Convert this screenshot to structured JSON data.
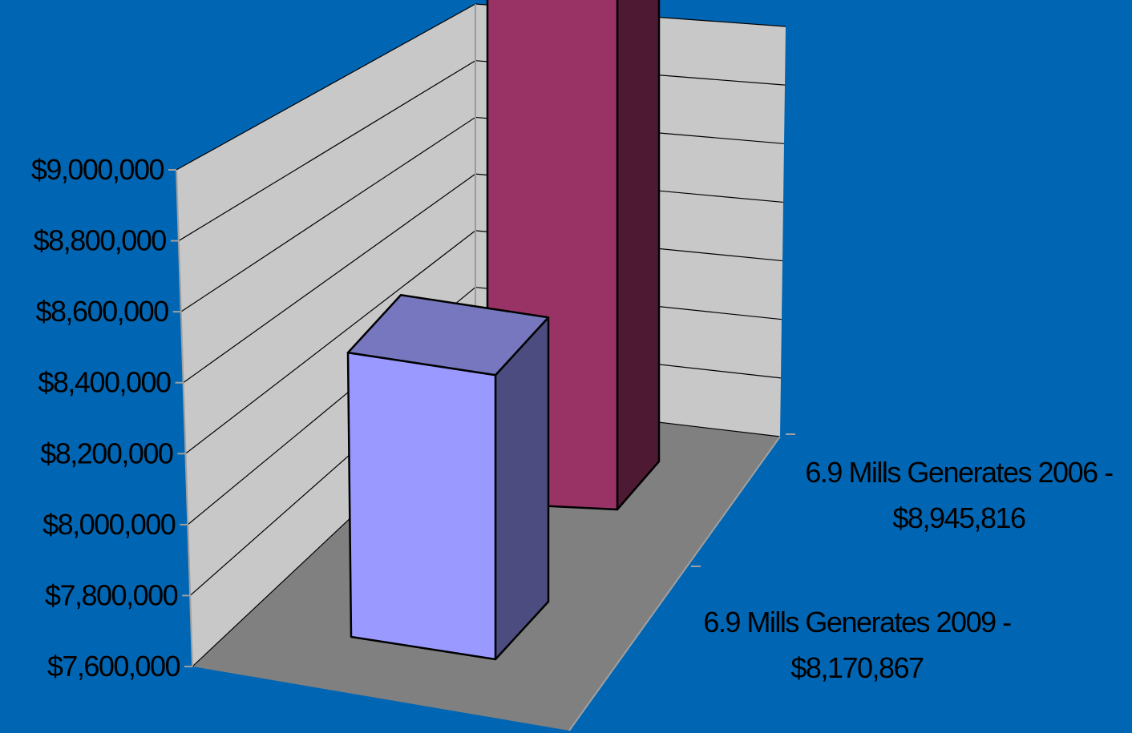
{
  "background_color": "#0066b3",
  "chart_data": {
    "type": "bar",
    "style": "3d-column",
    "title": "",
    "xlabel": "",
    "ylabel": "",
    "ylim": [
      7600000,
      9000000
    ],
    "y_ticks": [
      "$9,000,000",
      "$8,800,000",
      "$8,600,000",
      "$8,400,000",
      "$8,200,000",
      "$8,000,000",
      "$7,800,000",
      "$7,600,000"
    ],
    "grid": true,
    "legend": "none",
    "categories": [
      {
        "line1": "6.9 Mills Generates 2009 -",
        "line2": "$8,170,867"
      },
      {
        "line1": "6.9 Mills Generates 2006 -",
        "line2": "$8,945,816"
      }
    ],
    "values": [
      8170867,
      8945816
    ],
    "colors": {
      "bar_2009": {
        "front": "#9999ff",
        "top": "#7777c0",
        "side": "#4c4c80"
      },
      "bar_2006": {
        "front": "#993366",
        "top": "#732650",
        "side": "#4d1933"
      },
      "walls": "#c8c8c8",
      "floor": "#808080",
      "gridline": "#000000",
      "axis_line": "#a0a0a0"
    }
  }
}
